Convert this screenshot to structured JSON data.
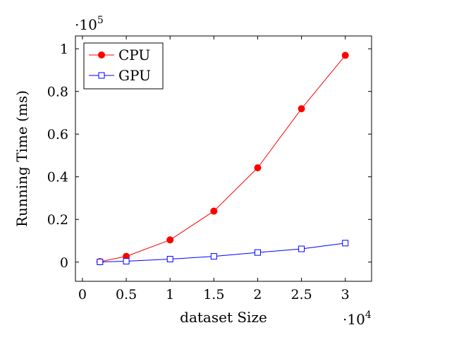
{
  "chart_data": {
    "type": "line",
    "xlabel": "dataset Size",
    "ylabel": "Running Time (ms)",
    "x_scale_label": "·10",
    "x_scale_exp": "4",
    "y_scale_label": "·10",
    "y_scale_exp": "5",
    "xlim": [
      -0.08,
      3.3
    ],
    "ylim": [
      -0.09,
      1.06
    ],
    "x_ticks": [
      0,
      0.5,
      1,
      1.5,
      2,
      2.5,
      3
    ],
    "x_tick_labels": [
      "0",
      "0.5",
      "1",
      "1.5",
      "2",
      "2.5",
      "3"
    ],
    "y_ticks": [
      0,
      0.2,
      0.4,
      0.6,
      0.8,
      1
    ],
    "y_tick_labels": [
      "0",
      "0.2",
      "0.4",
      "0.6",
      "0.8",
      "1"
    ],
    "x": [
      0.2,
      0.5,
      1,
      1.5,
      2,
      2.5,
      3
    ],
    "series": [
      {
        "name": "CPU",
        "color": "#ff0000",
        "marker": "circle",
        "values": [
          0.002,
          0.027,
          0.104,
          0.239,
          0.442,
          0.719,
          0.969
        ]
      },
      {
        "name": "GPU",
        "color": "#0000ff",
        "marker": "square",
        "values": [
          0.001,
          0.004,
          0.014,
          0.027,
          0.045,
          0.062,
          0.089
        ]
      }
    ],
    "legend_position": "top-left",
    "grid": false
  }
}
